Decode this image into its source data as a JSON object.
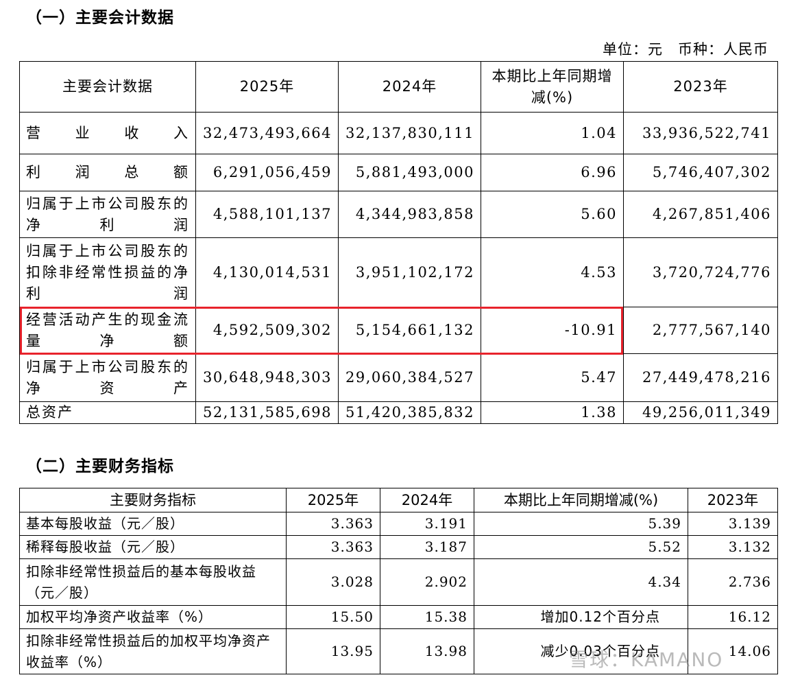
{
  "section1": {
    "heading": "（一）主要会计数据",
    "unit": "单位：元　币种：人民币",
    "headers": [
      "主要会计数据",
      "2025年",
      "2024年",
      "本期比上年同期增减(%)",
      "2023年"
    ],
    "rows": [
      {
        "label": "营业收入",
        "y2025": "32,473,493,664",
        "y2024": "32,137,830,111",
        "change": "1.04",
        "y2023": "33,936,522,741"
      },
      {
        "label": "利润总额",
        "y2025": "6,291,056,459",
        "y2024": "5,881,493,000",
        "change": "6.96",
        "y2023": "5,746,407,302"
      },
      {
        "label": "归属于上市公司股东的净利润",
        "y2025": "4,588,101,137",
        "y2024": "4,344,983,858",
        "change": "5.60",
        "y2023": "4,267,851,406"
      },
      {
        "label": "归属于上市公司股东的扣除非经常性损益的净利润",
        "y2025": "4,130,014,531",
        "y2024": "3,951,102,172",
        "change": "4.53",
        "y2023": "3,720,724,776"
      },
      {
        "label": "经营活动产生的现金流量净额",
        "y2025": "4,592,509,302",
        "y2024": "5,154,661,132",
        "change": "-10.91",
        "y2023": "2,777,567,140"
      },
      {
        "label": "归属于上市公司股东的净资产",
        "y2025": "30,648,948,303",
        "y2024": "29,060,384,527",
        "change": "5.47",
        "y2023": "27,449,478,216"
      },
      {
        "label": "总资产",
        "y2025": "52,131,585,698",
        "y2024": "51,420,385,832",
        "change": "1.38",
        "y2023": "49,256,011,349"
      }
    ]
  },
  "section2": {
    "heading": "（二）主要财务指标",
    "headers": [
      "主要财务指标",
      "2025年",
      "2024年",
      "本期比上年同期增减(%)",
      "2023年"
    ],
    "rows": [
      {
        "label": "基本每股收益（元／股）",
        "y2025": "3.363",
        "y2024": "3.191",
        "change": "5.39",
        "y2023": "3.139"
      },
      {
        "label": "稀释每股收益（元／股）",
        "y2025": "3.363",
        "y2024": "3.187",
        "change": "5.52",
        "y2023": "3.132"
      },
      {
        "label": "扣除非经常性损益后的基本每股收益（元／股）",
        "y2025": "3.028",
        "y2024": "2.902",
        "change": "4.34",
        "y2023": "2.736"
      },
      {
        "label": "加权平均净资产收益率（%）",
        "y2025": "15.50",
        "y2024": "15.38",
        "change": "增加0.12个百分点",
        "y2023": "16.12"
      },
      {
        "label": "扣除非经常性损益后的加权平均净资产收益率（%）",
        "y2025": "13.95",
        "y2024": "13.98",
        "change": "减少0.03个百分点",
        "y2023": "14.06"
      }
    ]
  },
  "watermark": "雪球：KAMANO",
  "highlight_color": "#e8232c"
}
